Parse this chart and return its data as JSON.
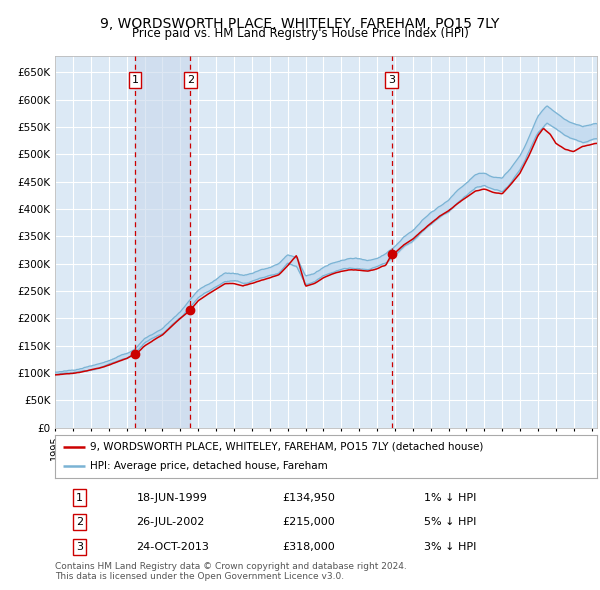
{
  "title": "9, WORDSWORTH PLACE, WHITELEY, FAREHAM, PO15 7LY",
  "subtitle": "Price paid vs. HM Land Registry's House Price Index (HPI)",
  "legend_line1": "9, WORDSWORTH PLACE, WHITELEY, FAREHAM, PO15 7LY (detached house)",
  "legend_line2": "HPI: Average price, detached house, Fareham",
  "purchases": [
    {
      "label": "1",
      "date": "18-JUN-1999",
      "price": 134950,
      "note": "1% ↓ HPI",
      "x_year": 1999.46
    },
    {
      "label": "2",
      "date": "26-JUL-2002",
      "price": 215000,
      "note": "5% ↓ HPI",
      "x_year": 2002.56
    },
    {
      "label": "3",
      "date": "24-OCT-2013",
      "price": 318000,
      "note": "3% ↓ HPI",
      "x_year": 2013.81
    }
  ],
  "yticks": [
    0,
    50000,
    100000,
    150000,
    200000,
    250000,
    300000,
    350000,
    400000,
    450000,
    500000,
    550000,
    600000,
    650000
  ],
  "ylim": [
    0,
    680000
  ],
  "xlim_start": 1995.0,
  "xlim_end": 2025.3,
  "plot_bg_color": "#dce9f5",
  "grid_color": "#ffffff",
  "hpi_line_color": "#7ab3d4",
  "hpi_fill_color": "#bdd7ee",
  "price_line_color": "#cc0000",
  "dashed_line_color": "#cc0000",
  "shade_color": "#c6d9ee",
  "footer": "Contains HM Land Registry data © Crown copyright and database right 2024.\nThis data is licensed under the Open Government Licence v3.0.",
  "hpi_anchors": [
    [
      1995.0,
      97000
    ],
    [
      1995.5,
      98500
    ],
    [
      1996.0,
      100000
    ],
    [
      1996.5,
      103000
    ],
    [
      1997.0,
      107000
    ],
    [
      1997.5,
      112000
    ],
    [
      1998.0,
      116000
    ],
    [
      1998.5,
      122000
    ],
    [
      1999.0,
      128000
    ],
    [
      1999.5,
      138000
    ],
    [
      2000.0,
      155000
    ],
    [
      2000.5,
      163000
    ],
    [
      2001.0,
      172000
    ],
    [
      2001.5,
      187000
    ],
    [
      2002.0,
      202000
    ],
    [
      2002.5,
      220000
    ],
    [
      2003.0,
      238000
    ],
    [
      2003.5,
      248000
    ],
    [
      2004.0,
      258000
    ],
    [
      2004.5,
      268000
    ],
    [
      2005.0,
      268000
    ],
    [
      2005.5,
      264000
    ],
    [
      2006.0,
      268000
    ],
    [
      2006.5,
      274000
    ],
    [
      2007.0,
      278000
    ],
    [
      2007.5,
      284000
    ],
    [
      2008.0,
      300000
    ],
    [
      2008.5,
      295000
    ],
    [
      2009.0,
      263000
    ],
    [
      2009.5,
      268000
    ],
    [
      2010.0,
      278000
    ],
    [
      2010.5,
      285000
    ],
    [
      2011.0,
      290000
    ],
    [
      2011.5,
      293000
    ],
    [
      2012.0,
      292000
    ],
    [
      2012.5,
      290000
    ],
    [
      2013.0,
      294000
    ],
    [
      2013.5,
      302000
    ],
    [
      2014.0,
      314000
    ],
    [
      2014.5,
      330000
    ],
    [
      2015.0,
      342000
    ],
    [
      2015.5,
      358000
    ],
    [
      2016.0,
      372000
    ],
    [
      2016.5,
      385000
    ],
    [
      2017.0,
      395000
    ],
    [
      2017.5,
      412000
    ],
    [
      2018.0,
      425000
    ],
    [
      2018.5,
      438000
    ],
    [
      2019.0,
      442000
    ],
    [
      2019.5,
      435000
    ],
    [
      2020.0,
      432000
    ],
    [
      2020.5,
      450000
    ],
    [
      2021.0,
      472000
    ],
    [
      2021.5,
      505000
    ],
    [
      2022.0,
      540000
    ],
    [
      2022.5,
      558000
    ],
    [
      2023.0,
      548000
    ],
    [
      2023.5,
      535000
    ],
    [
      2024.0,
      528000
    ],
    [
      2024.5,
      522000
    ],
    [
      2025.2,
      527000
    ]
  ],
  "prop_anchors": [
    [
      1995.0,
      97000
    ],
    [
      1995.5,
      98000
    ],
    [
      1996.0,
      99500
    ],
    [
      1996.5,
      102000
    ],
    [
      1997.0,
      106000
    ],
    [
      1997.5,
      110000
    ],
    [
      1998.0,
      115000
    ],
    [
      1998.5,
      121000
    ],
    [
      1999.0,
      127000
    ],
    [
      1999.46,
      134950
    ],
    [
      1999.7,
      140000
    ],
    [
      2000.0,
      150000
    ],
    [
      2000.5,
      160000
    ],
    [
      2001.0,
      170000
    ],
    [
      2001.5,
      185000
    ],
    [
      2002.0,
      200000
    ],
    [
      2002.56,
      215000
    ],
    [
      2003.0,
      232000
    ],
    [
      2003.5,
      244000
    ],
    [
      2004.0,
      254000
    ],
    [
      2004.5,
      264000
    ],
    [
      2005.0,
      264000
    ],
    [
      2005.5,
      260000
    ],
    [
      2006.0,
      264000
    ],
    [
      2006.5,
      270000
    ],
    [
      2007.0,
      274000
    ],
    [
      2007.5,
      280000
    ],
    [
      2008.0,
      296000
    ],
    [
      2008.5,
      316000
    ],
    [
      2009.0,
      259000
    ],
    [
      2009.5,
      264000
    ],
    [
      2010.0,
      274000
    ],
    [
      2010.5,
      281000
    ],
    [
      2011.0,
      286000
    ],
    [
      2011.5,
      289000
    ],
    [
      2012.0,
      288000
    ],
    [
      2012.5,
      286000
    ],
    [
      2013.0,
      290000
    ],
    [
      2013.5,
      298000
    ],
    [
      2013.81,
      318000
    ],
    [
      2014.0,
      320000
    ],
    [
      2014.5,
      335000
    ],
    [
      2015.0,
      345000
    ],
    [
      2015.5,
      360000
    ],
    [
      2016.0,
      374000
    ],
    [
      2016.5,
      387000
    ],
    [
      2017.0,
      397000
    ],
    [
      2017.5,
      410000
    ],
    [
      2018.0,
      422000
    ],
    [
      2018.5,
      433000
    ],
    [
      2019.0,
      437000
    ],
    [
      2019.5,
      430000
    ],
    [
      2020.0,
      428000
    ],
    [
      2020.5,
      446000
    ],
    [
      2021.0,
      466000
    ],
    [
      2021.5,
      498000
    ],
    [
      2022.0,
      535000
    ],
    [
      2022.3,
      548000
    ],
    [
      2022.7,
      536000
    ],
    [
      2023.0,
      520000
    ],
    [
      2023.5,
      510000
    ],
    [
      2024.0,
      505000
    ],
    [
      2024.5,
      515000
    ],
    [
      2025.2,
      520000
    ]
  ]
}
